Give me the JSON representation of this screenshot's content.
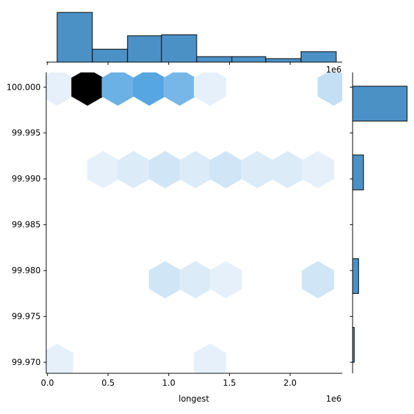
{
  "chart_data": {
    "type": "hexbin",
    "title": "",
    "x": {
      "label": "longest",
      "range": [
        -10000,
        2430000
      ],
      "ticks": [
        0,
        500000,
        1000000,
        1500000,
        2000000
      ],
      "tick_labels": [
        "0.0",
        "0.5",
        "1.0",
        "1.5",
        "2.0"
      ],
      "offset_text": "1e6"
    },
    "y": {
      "range": [
        99.9688,
        100.0016
      ],
      "ticks": [
        99.97,
        99.975,
        99.98,
        99.985,
        99.99,
        99.995,
        100.0
      ],
      "tick_labels": [
        "99.970",
        "99.975",
        "99.980",
        "99.985",
        "99.990",
        "99.995",
        "100.000"
      ]
    },
    "colors": {
      "high": "#000000",
      "hist": "#4c91c6"
    },
    "hexbins": [
      {
        "x": 80000,
        "y": 100.0,
        "intensity": 0.05
      },
      {
        "x": 330000,
        "y": 100.0,
        "intensity": 1.0
      },
      {
        "x": 580000,
        "y": 100.0,
        "intensity": 0.6
      },
      {
        "x": 840000,
        "y": 100.0,
        "intensity": 0.7
      },
      {
        "x": 1090000,
        "y": 100.0,
        "intensity": 0.55
      },
      {
        "x": 1340000,
        "y": 100.0,
        "intensity": 0.05
      },
      {
        "x": 2360000,
        "y": 100.0,
        "intensity": 0.2
      },
      {
        "x": 460000,
        "y": 99.991,
        "intensity": 0.05
      },
      {
        "x": 710000,
        "y": 99.991,
        "intensity": 0.1
      },
      {
        "x": 970000,
        "y": 99.991,
        "intensity": 0.15
      },
      {
        "x": 1220000,
        "y": 99.991,
        "intensity": 0.1
      },
      {
        "x": 1470000,
        "y": 99.991,
        "intensity": 0.15
      },
      {
        "x": 1730000,
        "y": 99.991,
        "intensity": 0.1
      },
      {
        "x": 1980000,
        "y": 99.991,
        "intensity": 0.1
      },
      {
        "x": 2230000,
        "y": 99.991,
        "intensity": 0.05
      },
      {
        "x": 970000,
        "y": 99.979,
        "intensity": 0.15
      },
      {
        "x": 1220000,
        "y": 99.979,
        "intensity": 0.1
      },
      {
        "x": 1470000,
        "y": 99.979,
        "intensity": 0.05
      },
      {
        "x": 2230000,
        "y": 99.979,
        "intensity": 0.15
      },
      {
        "x": 80000,
        "y": 99.97,
        "intensity": 0.05
      },
      {
        "x": 1340000,
        "y": 99.97,
        "intensity": 0.05
      }
    ],
    "x_marginal_hist": {
      "bin_edges": [
        80000,
        370000,
        660000,
        940000,
        1230000,
        1520000,
        1800000,
        2090000,
        2380000
      ],
      "counts": [
        10,
        2.6,
        5.3,
        5.5,
        1.1,
        1.1,
        0.7,
        2.1
      ]
    },
    "y_marginal_hist": {
      "bins": [
        {
          "y_low": 99.9963,
          "y_high": 100.0001,
          "count": 10
        },
        {
          "y_low": 99.9888,
          "y_high": 99.9926,
          "count": 2.0
        },
        {
          "y_low": 99.9775,
          "y_high": 99.9813,
          "count": 1.1
        },
        {
          "y_low": 99.97,
          "y_high": 99.9738,
          "count": 0.3
        }
      ]
    }
  }
}
